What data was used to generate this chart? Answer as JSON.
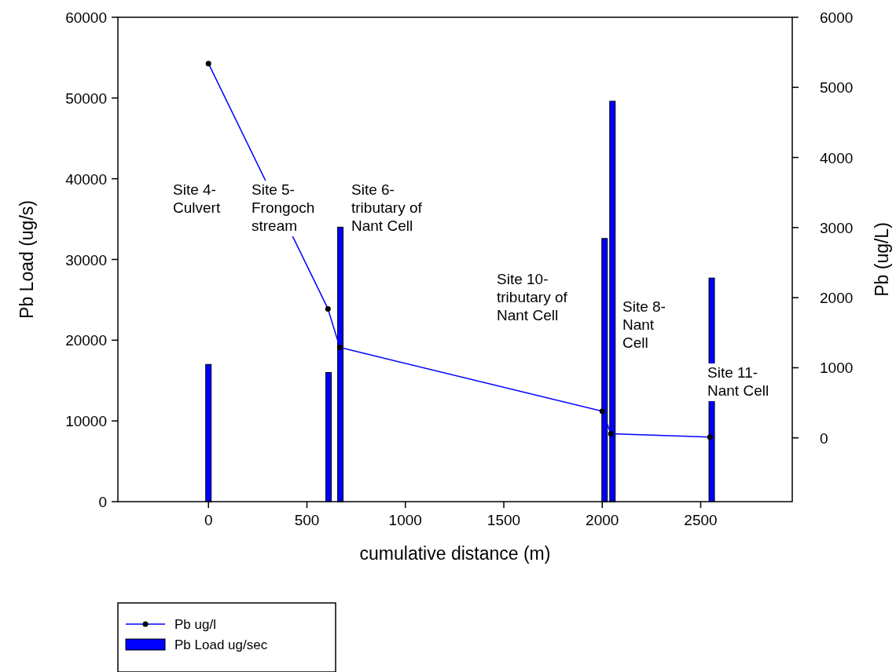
{
  "chart_data": {
    "type": "bar",
    "xlabel": "cumulative distance (m)",
    "ylabel": "Pb Load (ug/s)",
    "y2label": "Pb (ug/L)",
    "xlim": [
      -460,
      2965
    ],
    "xticks": [
      0,
      500,
      1000,
      1500,
      2000,
      2500
    ],
    "ylim": [
      0,
      60000
    ],
    "yticks": [
      0,
      10000,
      20000,
      30000,
      40000,
      50000,
      60000
    ],
    "y2lim": [
      -910,
      6000
    ],
    "y2ticks": [
      0,
      1000,
      2000,
      3000,
      4000,
      5000,
      6000
    ],
    "series": [
      {
        "name": "Pb ug/l",
        "type": "line",
        "axis": "y2",
        "color": "#0000ff",
        "x": [
          0,
          607,
          667,
          2000,
          2044,
          2547
        ],
        "values": [
          5340,
          1840,
          1290,
          380,
          60,
          10
        ]
      },
      {
        "name": "Pb Load ug/sec",
        "color": "#0000ff",
        "x": [
          0,
          610,
          670,
          2012,
          2052,
          2556
        ],
        "values": [
          17000,
          16000,
          34000,
          32600,
          49600,
          27700
        ]
      }
    ],
    "annotations": [
      "Site 4-\nCulvert",
      "Site 5-\nFrongoch\nstream",
      "Site 6-\ntributary of\nNant Cell",
      "Site 10-\ntributary of\nNant Cell",
      "Site 8-\nNant\nCell",
      "Site 11-\nNant Cell"
    ],
    "marker": "circle",
    "legend": "bottom",
    "grid": false
  }
}
